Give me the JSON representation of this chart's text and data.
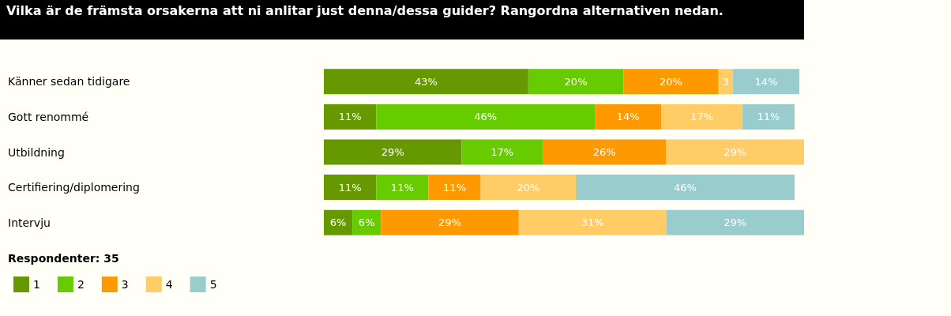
{
  "chart_data": {
    "type": "bar",
    "orientation": "horizontal",
    "stacked": true,
    "title": "Vilka är de främsta orsakerna att ni anlitar just denna/dessa guider? Rangordna alternativen nedan.",
    "categories": [
      "Känner sedan tidigare",
      "Gott renommé",
      "Utbildning",
      "Certifiering/diplomering",
      "Intervju"
    ],
    "series": [
      {
        "name": "1",
        "color": "#669900",
        "values": [
          43,
          11,
          29,
          11,
          6
        ],
        "value_labels": [
          "43%",
          "11%",
          "29%",
          "11%",
          "6%"
        ]
      },
      {
        "name": "2",
        "color": "#66cc00",
        "values": [
          20,
          46,
          17,
          11,
          6
        ],
        "value_labels": [
          "20%",
          "46%",
          "17%",
          "11%",
          "6%"
        ]
      },
      {
        "name": "3",
        "color": "#ff9900",
        "values": [
          20,
          14,
          26,
          11,
          29
        ],
        "value_labels": [
          "20%",
          "14%",
          "26%",
          "11%",
          "29%"
        ]
      },
      {
        "name": "4",
        "color": "#ffcc66",
        "values": [
          3,
          17,
          29,
          20,
          31
        ],
        "value_labels": [
          "3",
          "17%",
          "29%",
          "20%",
          "31%"
        ]
      },
      {
        "name": "5",
        "color": "#99cccc",
        "values": [
          14,
          11,
          null,
          46,
          29
        ],
        "value_labels": [
          "14%",
          "11%",
          null,
          "46%",
          "29%"
        ]
      }
    ],
    "annotations": [
      "Respondenter: 35"
    ],
    "legend": "bottom left"
  }
}
